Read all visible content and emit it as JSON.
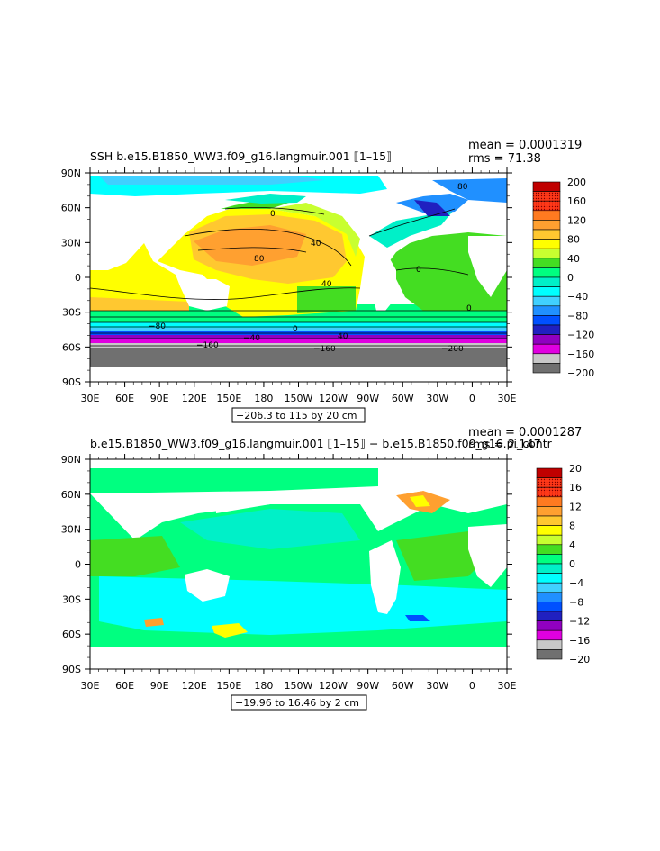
{
  "panels": [
    {
      "title": "SSH b.e15.B1850_WW3.f09_g16.langmuir.001 ⟦1–15⟧",
      "mean_label": "mean = 0.0001319",
      "rms_label": "rms = 71.38",
      "range_label": "−206.3 to 115 by 20 cm",
      "colorbar": {
        "labels": [
          "200",
          "160",
          "120",
          "80",
          "40",
          "0",
          "−40",
          "−80",
          "−120",
          "−160",
          "−200"
        ],
        "colors": [
          "#c00000",
          "#e02010",
          "#ff3818",
          "#ff7a20",
          "#ffa030",
          "#ffc830",
          "#ffff00",
          "#c8ff30",
          "#44dd22",
          "#00ff80",
          "#00f0c8",
          "#00ffff",
          "#40d0ff",
          "#2090ff",
          "#0050ff",
          "#2020c0",
          "#9000c0",
          "#e000e0",
          "#c8c8c8",
          "#707070"
        ]
      },
      "contour_labels": [
        "0",
        "40",
        "80",
        "40",
        "0",
        "0",
        "40",
        "−160",
        "−160",
        "−200",
        "0",
        "−40",
        "80",
        "−80"
      ]
    },
    {
      "title": "b.e15.B1850_WW3.f09_g16.langmuir.001 ⟦1–15⟧ − b.e15.B1850.f09_g16.pi_contr",
      "mean_label": "mean = 0.0001287",
      "rms_label": "rms = 2.147",
      "range_label": "−19.96 to 16.46 by 2 cm",
      "colorbar": {
        "labels": [
          "20",
          "16",
          "12",
          "8",
          "4",
          "0",
          "−4",
          "−8",
          "−12",
          "−16",
          "−20"
        ],
        "colors": [
          "#c00000",
          "#e02010",
          "#ff3818",
          "#ff7a20",
          "#ffa030",
          "#ffc830",
          "#ffff00",
          "#c8ff30",
          "#44dd22",
          "#00ff80",
          "#00f0c8",
          "#00ffff",
          "#40d0ff",
          "#2090ff",
          "#0050ff",
          "#2020c0",
          "#9000c0",
          "#e000e0",
          "#c8c8c8",
          "#707070"
        ]
      }
    }
  ],
  "map_axes": {
    "lon_ticks": [
      "30E",
      "60E",
      "90E",
      "120E",
      "150E",
      "180",
      "150W",
      "120W",
      "90W",
      "60W",
      "30W",
      "0",
      "30E"
    ],
    "lat_ticks": [
      "90N",
      "60N",
      "30N",
      "0",
      "30S",
      "60S",
      "90S"
    ]
  }
}
